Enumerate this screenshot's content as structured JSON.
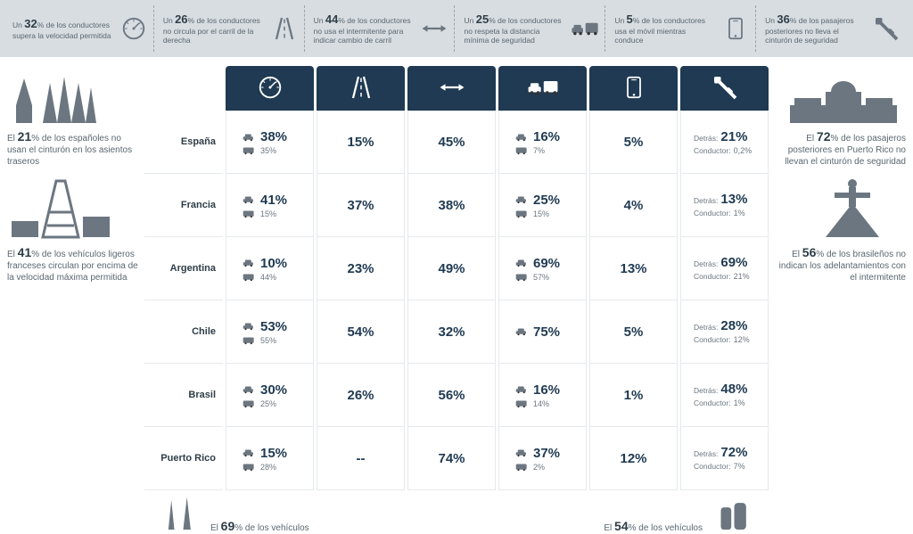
{
  "colors": {
    "header_bg": "#d8dde1",
    "th_bg": "#1f3a52",
    "text_main": "#5a6770",
    "text_strong": "#2e3d47",
    "pct_color": "#1f3a52",
    "border": "#e6e9ec"
  },
  "header": [
    {
      "pct": "32",
      "text": "% de los conductores supera la velocidad permitida",
      "icon": "speed"
    },
    {
      "pct": "26",
      "text": "% de los conductores no circula por el carril de la derecha",
      "icon": "lane"
    },
    {
      "pct": "44",
      "text": "% de los conductores no usa el intermitente para indicar cambio de carril",
      "icon": "arrows"
    },
    {
      "pct": "25",
      "text": "% de los conductores no respeta la distancia mínima de seguridad",
      "icon": "cars"
    },
    {
      "pct": "5",
      "text": "% de los conductores usa el móvil mientras conduce",
      "icon": "phone"
    },
    {
      "pct": "36",
      "text": "% de los pasajeros posteriores no lleva el cinturón de seguridad",
      "icon": "belt"
    }
  ],
  "columns": [
    "speed",
    "lane",
    "arrows",
    "cars",
    "phone",
    "belt"
  ],
  "rows": [
    {
      "country": "España",
      "speed": {
        "car": "38%",
        "bus": "35%"
      },
      "lane": "15%",
      "arrows": "45%",
      "cars": {
        "car": "16%",
        "bus": "7%"
      },
      "phone": "5%",
      "belt": {
        "detras": "21%",
        "conductor": "0,2%"
      }
    },
    {
      "country": "Francia",
      "speed": {
        "car": "41%",
        "bus": "15%"
      },
      "lane": "37%",
      "arrows": "38%",
      "cars": {
        "car": "25%",
        "bus": "15%"
      },
      "phone": "4%",
      "belt": {
        "detras": "13%",
        "conductor": "1%"
      }
    },
    {
      "country": "Argentina",
      "speed": {
        "car": "10%",
        "bus": "44%"
      },
      "lane": "23%",
      "arrows": "49%",
      "cars": {
        "car": "69%",
        "bus": "57%"
      },
      "phone": "13%",
      "belt": {
        "detras": "69%",
        "conductor": "21%"
      }
    },
    {
      "country": "Chile",
      "speed": {
        "car": "53%",
        "bus": "55%"
      },
      "lane": "54%",
      "arrows": "32%",
      "cars": {
        "car": "75%",
        "bus": ""
      },
      "phone": "5%",
      "belt": {
        "detras": "28%",
        "conductor": "12%"
      }
    },
    {
      "country": "Brasil",
      "speed": {
        "car": "30%",
        "bus": "25%"
      },
      "lane": "26%",
      "arrows": "56%",
      "cars": {
        "car": "16%",
        "bus": "14%"
      },
      "phone": "1%",
      "belt": {
        "detras": "48%",
        "conductor": "1%"
      }
    },
    {
      "country": "Puerto Rico",
      "speed": {
        "car": "15%",
        "bus": "28%"
      },
      "lane": "--",
      "arrows": "74%",
      "cars": {
        "car": "37%",
        "bus": "2%"
      },
      "phone": "12%",
      "belt": {
        "detras": "72%",
        "conductor": "7%"
      }
    }
  ],
  "left": [
    {
      "pct": "21",
      "text": "% de los españoles no usan el cinturón en los asientos traseros",
      "illo": "sagrada"
    },
    {
      "pct": "41",
      "text": "% de los vehículos ligeros franceses circulan por encima de la velocidad máxima permitida",
      "illo": "eiffel"
    }
  ],
  "right": [
    {
      "pct": "72",
      "text": "% de los pasajeros posteriores en Puerto Rico no llevan el cinturón de seguridad",
      "illo": "capitol"
    },
    {
      "pct": "56",
      "text": "% de los brasileños no indican los adelantamientos con el intermitente",
      "illo": "rio"
    }
  ],
  "footer": [
    {
      "pct": "69",
      "text": "% de los vehículos",
      "illo": "obelisk"
    },
    {
      "pct": "54",
      "text": "% de los vehículos",
      "illo": "moai"
    }
  ]
}
